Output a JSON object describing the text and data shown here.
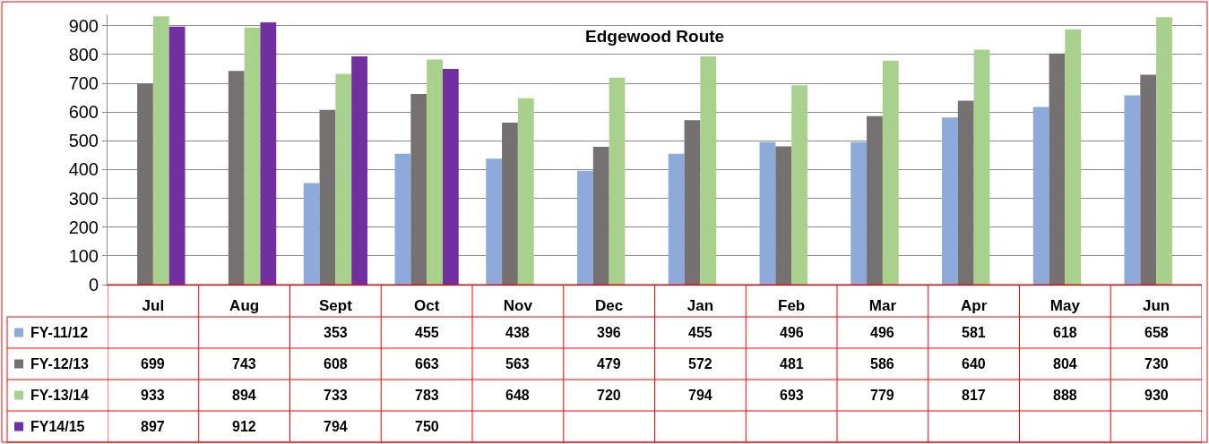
{
  "chart_data": {
    "type": "bar",
    "title": "Edgewood Route",
    "categories": [
      "Jul",
      "Aug",
      "Sept",
      "Oct",
      "Nov",
      "Dec",
      "Jan",
      "Feb",
      "Mar",
      "Apr",
      "May",
      "Jun"
    ],
    "series": [
      {
        "name": "FY-11/12",
        "color": "#8eaadb",
        "values": [
          null,
          null,
          353,
          455,
          438,
          396,
          455,
          496,
          496,
          581,
          618,
          658
        ]
      },
      {
        "name": "FY-12/13",
        "color": "#767171",
        "values": [
          699,
          743,
          608,
          663,
          563,
          479,
          572,
          481,
          586,
          640,
          804,
          730
        ]
      },
      {
        "name": "FY-13/14",
        "color": "#a9d18e",
        "values": [
          933,
          894,
          733,
          783,
          648,
          720,
          794,
          693,
          779,
          817,
          888,
          930
        ]
      },
      {
        "name": "FY14/15",
        "color": "#7030a0",
        "values": [
          897,
          912,
          794,
          750,
          null,
          null,
          null,
          null,
          null,
          null,
          null,
          null
        ]
      }
    ],
    "ylim": [
      0,
      940
    ],
    "yticks": [
      0,
      100,
      200,
      300,
      400,
      500,
      600,
      700,
      800,
      900
    ],
    "grid": "y",
    "legend": "bottom",
    "data_labels": true
  }
}
